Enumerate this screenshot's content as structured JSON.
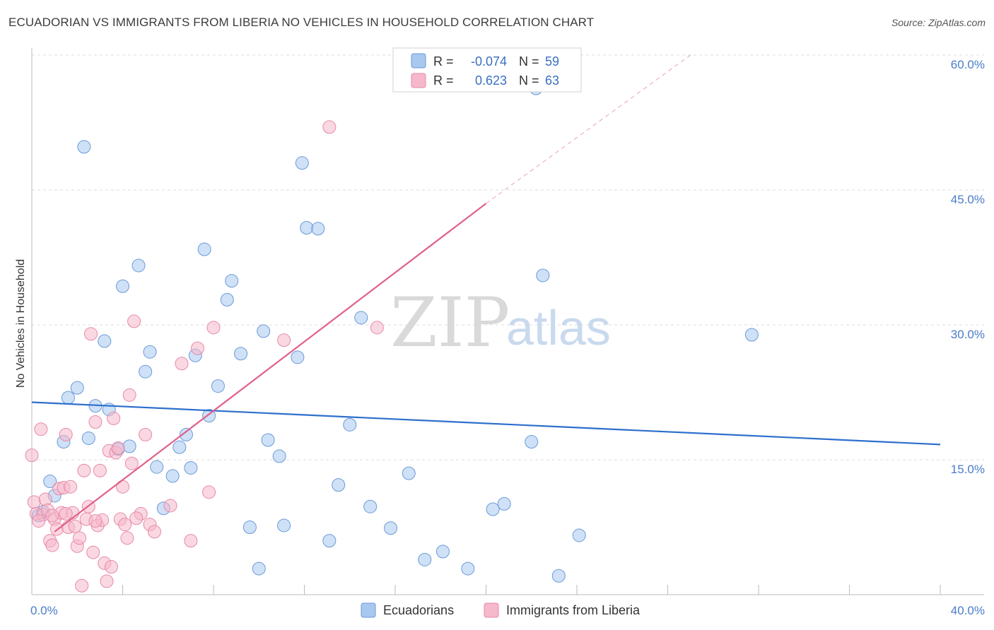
{
  "title": "ECUADORIAN VS IMMIGRANTS FROM LIBERIA NO VEHICLES IN HOUSEHOLD CORRELATION CHART",
  "source": "Source: ZipAtlas.com",
  "watermark": {
    "zip": "ZIP",
    "atlas": "atlas"
  },
  "legend_top": {
    "rows": [
      {
        "r_label": "R =",
        "r_value": "-0.074",
        "n_label": "N =",
        "n_value": "59",
        "color": "#a8c8f0",
        "stroke": "#6a9ad8"
      },
      {
        "r_label": "R =",
        "r_value": "0.623",
        "n_label": "N =",
        "n_value": "63",
        "color": "#f6b8cb",
        "stroke": "#e889a8"
      }
    ]
  },
  "legend_bottom": {
    "items": [
      {
        "label": "Ecuadorians",
        "color": "#a8c8f0",
        "stroke": "#6a9ad8"
      },
      {
        "label": "Immigrants from Liberia",
        "color": "#f6b8cb",
        "stroke": "#e889a8"
      }
    ]
  },
  "chart_data": {
    "type": "scatter",
    "title": "ECUADORIAN VS IMMIGRANTS FROM LIBERIA NO VEHICLES IN HOUSEHOLD CORRELATION CHART",
    "xlabel": "",
    "ylabel": "No Vehicles in Household",
    "xlim": [
      0,
      40
    ],
    "ylim": [
      0,
      60
    ],
    "x_tick_labels": [
      "0.0%",
      "40.0%"
    ],
    "y_ticks": [
      15,
      30,
      45,
      60
    ],
    "y_tick_labels": [
      "15.0%",
      "30.0%",
      "45.0%",
      "60.0%"
    ],
    "grid": true,
    "series": [
      {
        "name": "Ecuadorians",
        "color": "#6a9ad8",
        "fill": "#a8c8f0",
        "trend": {
          "x": [
            0,
            40
          ],
          "y": [
            21.4,
            16.7
          ],
          "color": "#2e6fcc"
        },
        "points": [
          [
            0.3,
            8.8
          ],
          [
            0.5,
            9.2
          ],
          [
            0.8,
            12.6
          ],
          [
            1.0,
            11.0
          ],
          [
            1.4,
            17.0
          ],
          [
            1.6,
            21.9
          ],
          [
            2.0,
            23.0
          ],
          [
            2.3,
            49.8
          ],
          [
            2.5,
            17.4
          ],
          [
            2.8,
            21.0
          ],
          [
            3.2,
            28.2
          ],
          [
            3.4,
            20.6
          ],
          [
            3.8,
            16.2
          ],
          [
            4.0,
            34.3
          ],
          [
            4.3,
            16.5
          ],
          [
            4.7,
            36.6
          ],
          [
            5.0,
            24.8
          ],
          [
            5.2,
            27.0
          ],
          [
            5.5,
            14.2
          ],
          [
            5.8,
            9.6
          ],
          [
            6.2,
            13.2
          ],
          [
            6.5,
            16.4
          ],
          [
            6.8,
            17.8
          ],
          [
            7.0,
            14.1
          ],
          [
            7.2,
            26.6
          ],
          [
            7.6,
            38.4
          ],
          [
            7.8,
            19.9
          ],
          [
            8.2,
            23.2
          ],
          [
            8.6,
            32.8
          ],
          [
            8.8,
            34.9
          ],
          [
            9.2,
            26.8
          ],
          [
            9.6,
            7.5
          ],
          [
            10.0,
            2.9
          ],
          [
            10.2,
            29.3
          ],
          [
            10.4,
            17.2
          ],
          [
            10.9,
            15.4
          ],
          [
            11.1,
            7.7
          ],
          [
            11.7,
            26.4
          ],
          [
            11.9,
            48.0
          ],
          [
            12.1,
            40.8
          ],
          [
            12.6,
            40.7
          ],
          [
            13.1,
            6.0
          ],
          [
            13.5,
            12.2
          ],
          [
            14.0,
            18.9
          ],
          [
            14.5,
            30.8
          ],
          [
            14.9,
            9.8
          ],
          [
            15.8,
            7.4
          ],
          [
            16.6,
            13.5
          ],
          [
            17.3,
            3.9
          ],
          [
            18.1,
            4.8
          ],
          [
            19.2,
            2.9
          ],
          [
            20.3,
            9.5
          ],
          [
            20.8,
            10.1
          ],
          [
            22.0,
            17.0
          ],
          [
            22.2,
            56.3
          ],
          [
            22.5,
            35.5
          ],
          [
            23.2,
            2.1
          ],
          [
            24.1,
            6.6
          ],
          [
            31.7,
            28.9
          ]
        ]
      },
      {
        "name": "Immigrants from Liberia",
        "color": "#e889a8",
        "fill": "#f6b8cb",
        "trend": {
          "x": [
            1.0,
            20.0
          ],
          "y": [
            7.0,
            43.5
          ],
          "dashed_to": {
            "x": 29.0,
            "y": 60.0
          },
          "color": "#e0608a"
        },
        "points": [
          [
            0.0,
            15.5
          ],
          [
            0.1,
            10.3
          ],
          [
            0.2,
            9.0
          ],
          [
            0.4,
            18.4
          ],
          [
            0.5,
            8.9
          ],
          [
            0.6,
            10.6
          ],
          [
            0.7,
            9.4
          ],
          [
            0.8,
            6.0
          ],
          [
            0.9,
            5.5
          ],
          [
            1.0,
            8.4
          ],
          [
            1.1,
            7.3
          ],
          [
            1.2,
            11.8
          ],
          [
            1.3,
            9.1
          ],
          [
            1.4,
            11.9
          ],
          [
            1.5,
            17.8
          ],
          [
            1.6,
            7.5
          ],
          [
            1.7,
            12.0
          ],
          [
            1.8,
            9.1
          ],
          [
            1.9,
            7.6
          ],
          [
            2.0,
            5.4
          ],
          [
            2.1,
            6.3
          ],
          [
            2.2,
            1.0
          ],
          [
            2.3,
            13.8
          ],
          [
            2.4,
            8.4
          ],
          [
            2.5,
            9.8
          ],
          [
            2.6,
            29.0
          ],
          [
            2.7,
            4.7
          ],
          [
            2.8,
            19.2
          ],
          [
            2.9,
            7.7
          ],
          [
            3.0,
            13.8
          ],
          [
            3.1,
            8.3
          ],
          [
            3.2,
            3.5
          ],
          [
            3.3,
            1.5
          ],
          [
            3.4,
            16.0
          ],
          [
            3.5,
            3.1
          ],
          [
            3.6,
            19.6
          ],
          [
            3.7,
            15.8
          ],
          [
            3.8,
            16.3
          ],
          [
            3.9,
            8.4
          ],
          [
            4.0,
            12.0
          ],
          [
            4.1,
            7.8
          ],
          [
            4.2,
            6.3
          ],
          [
            4.3,
            22.2
          ],
          [
            4.4,
            14.6
          ],
          [
            4.5,
            30.4
          ],
          [
            4.8,
            9.0
          ],
          [
            5.0,
            17.8
          ],
          [
            5.2,
            7.8
          ],
          [
            5.4,
            7.0
          ],
          [
            6.1,
            9.9
          ],
          [
            6.6,
            25.7
          ],
          [
            7.0,
            6.0
          ],
          [
            7.3,
            27.4
          ],
          [
            7.8,
            11.4
          ],
          [
            8.0,
            29.7
          ],
          [
            11.1,
            28.3
          ],
          [
            13.1,
            52.0
          ],
          [
            15.2,
            29.7
          ],
          [
            0.3,
            8.2
          ],
          [
            0.9,
            8.8
          ],
          [
            1.5,
            9.0
          ],
          [
            2.8,
            8.2
          ],
          [
            4.6,
            8.5
          ]
        ]
      }
    ]
  }
}
